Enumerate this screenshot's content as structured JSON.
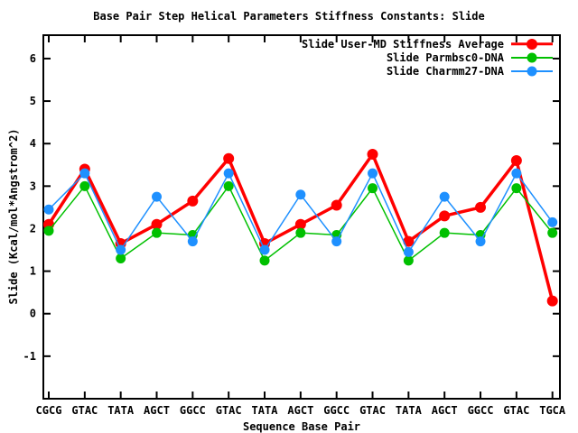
{
  "window": {
    "background": "#ffffff",
    "foreground": "#000000"
  },
  "chart_data": {
    "type": "line",
    "title": "Base Pair Step Helical Parameters Stiffness Constants: Slide",
    "xlabel": "Sequence Base Pair",
    "ylabel": "Slide (Kcal/mol*Angstrom^2)",
    "categories": [
      "CGCG",
      "GTAC",
      "TATA",
      "AGCT",
      "GGCC",
      "GTAC",
      "TATA",
      "AGCT",
      "GGCC",
      "GTAC",
      "TATA",
      "AGCT",
      "GGCC",
      "GTAC",
      "TGCA"
    ],
    "series": [
      {
        "name": "Slide User-MD Stiffness Average",
        "color": "#ff0000",
        "line_width": 3.5,
        "marker": "filled-circle",
        "marker_radius": 6,
        "values": [
          2.1,
          3.4,
          1.65,
          2.1,
          2.65,
          3.65,
          1.65,
          2.1,
          2.55,
          3.75,
          1.7,
          2.3,
          2.5,
          3.6,
          0.3
        ]
      },
      {
        "name": "Slide Parmbsc0-DNA",
        "color": "#00c000",
        "line_width": 1.5,
        "marker": "filled-circle",
        "marker_radius": 5.5,
        "values": [
          1.95,
          3.0,
          1.3,
          1.9,
          1.85,
          3.0,
          1.25,
          1.9,
          1.85,
          2.95,
          1.25,
          1.9,
          1.85,
          2.95,
          1.9
        ]
      },
      {
        "name": "Slide Charmm27-DNA",
        "color": "#1e90ff",
        "line_width": 1.5,
        "marker": "filled-circle",
        "marker_radius": 5.5,
        "values": [
          2.45,
          3.3,
          1.5,
          2.75,
          1.7,
          3.3,
          1.5,
          2.8,
          1.7,
          3.3,
          1.45,
          2.75,
          1.7,
          3.3,
          2.15
        ]
      }
    ],
    "yticks": [
      -1,
      0,
      1,
      2,
      3,
      4,
      5,
      6
    ],
    "ylim": [
      -2,
      6.55
    ],
    "grid": false,
    "legend_position": "top-right-inside",
    "axis_color": "#000000"
  }
}
